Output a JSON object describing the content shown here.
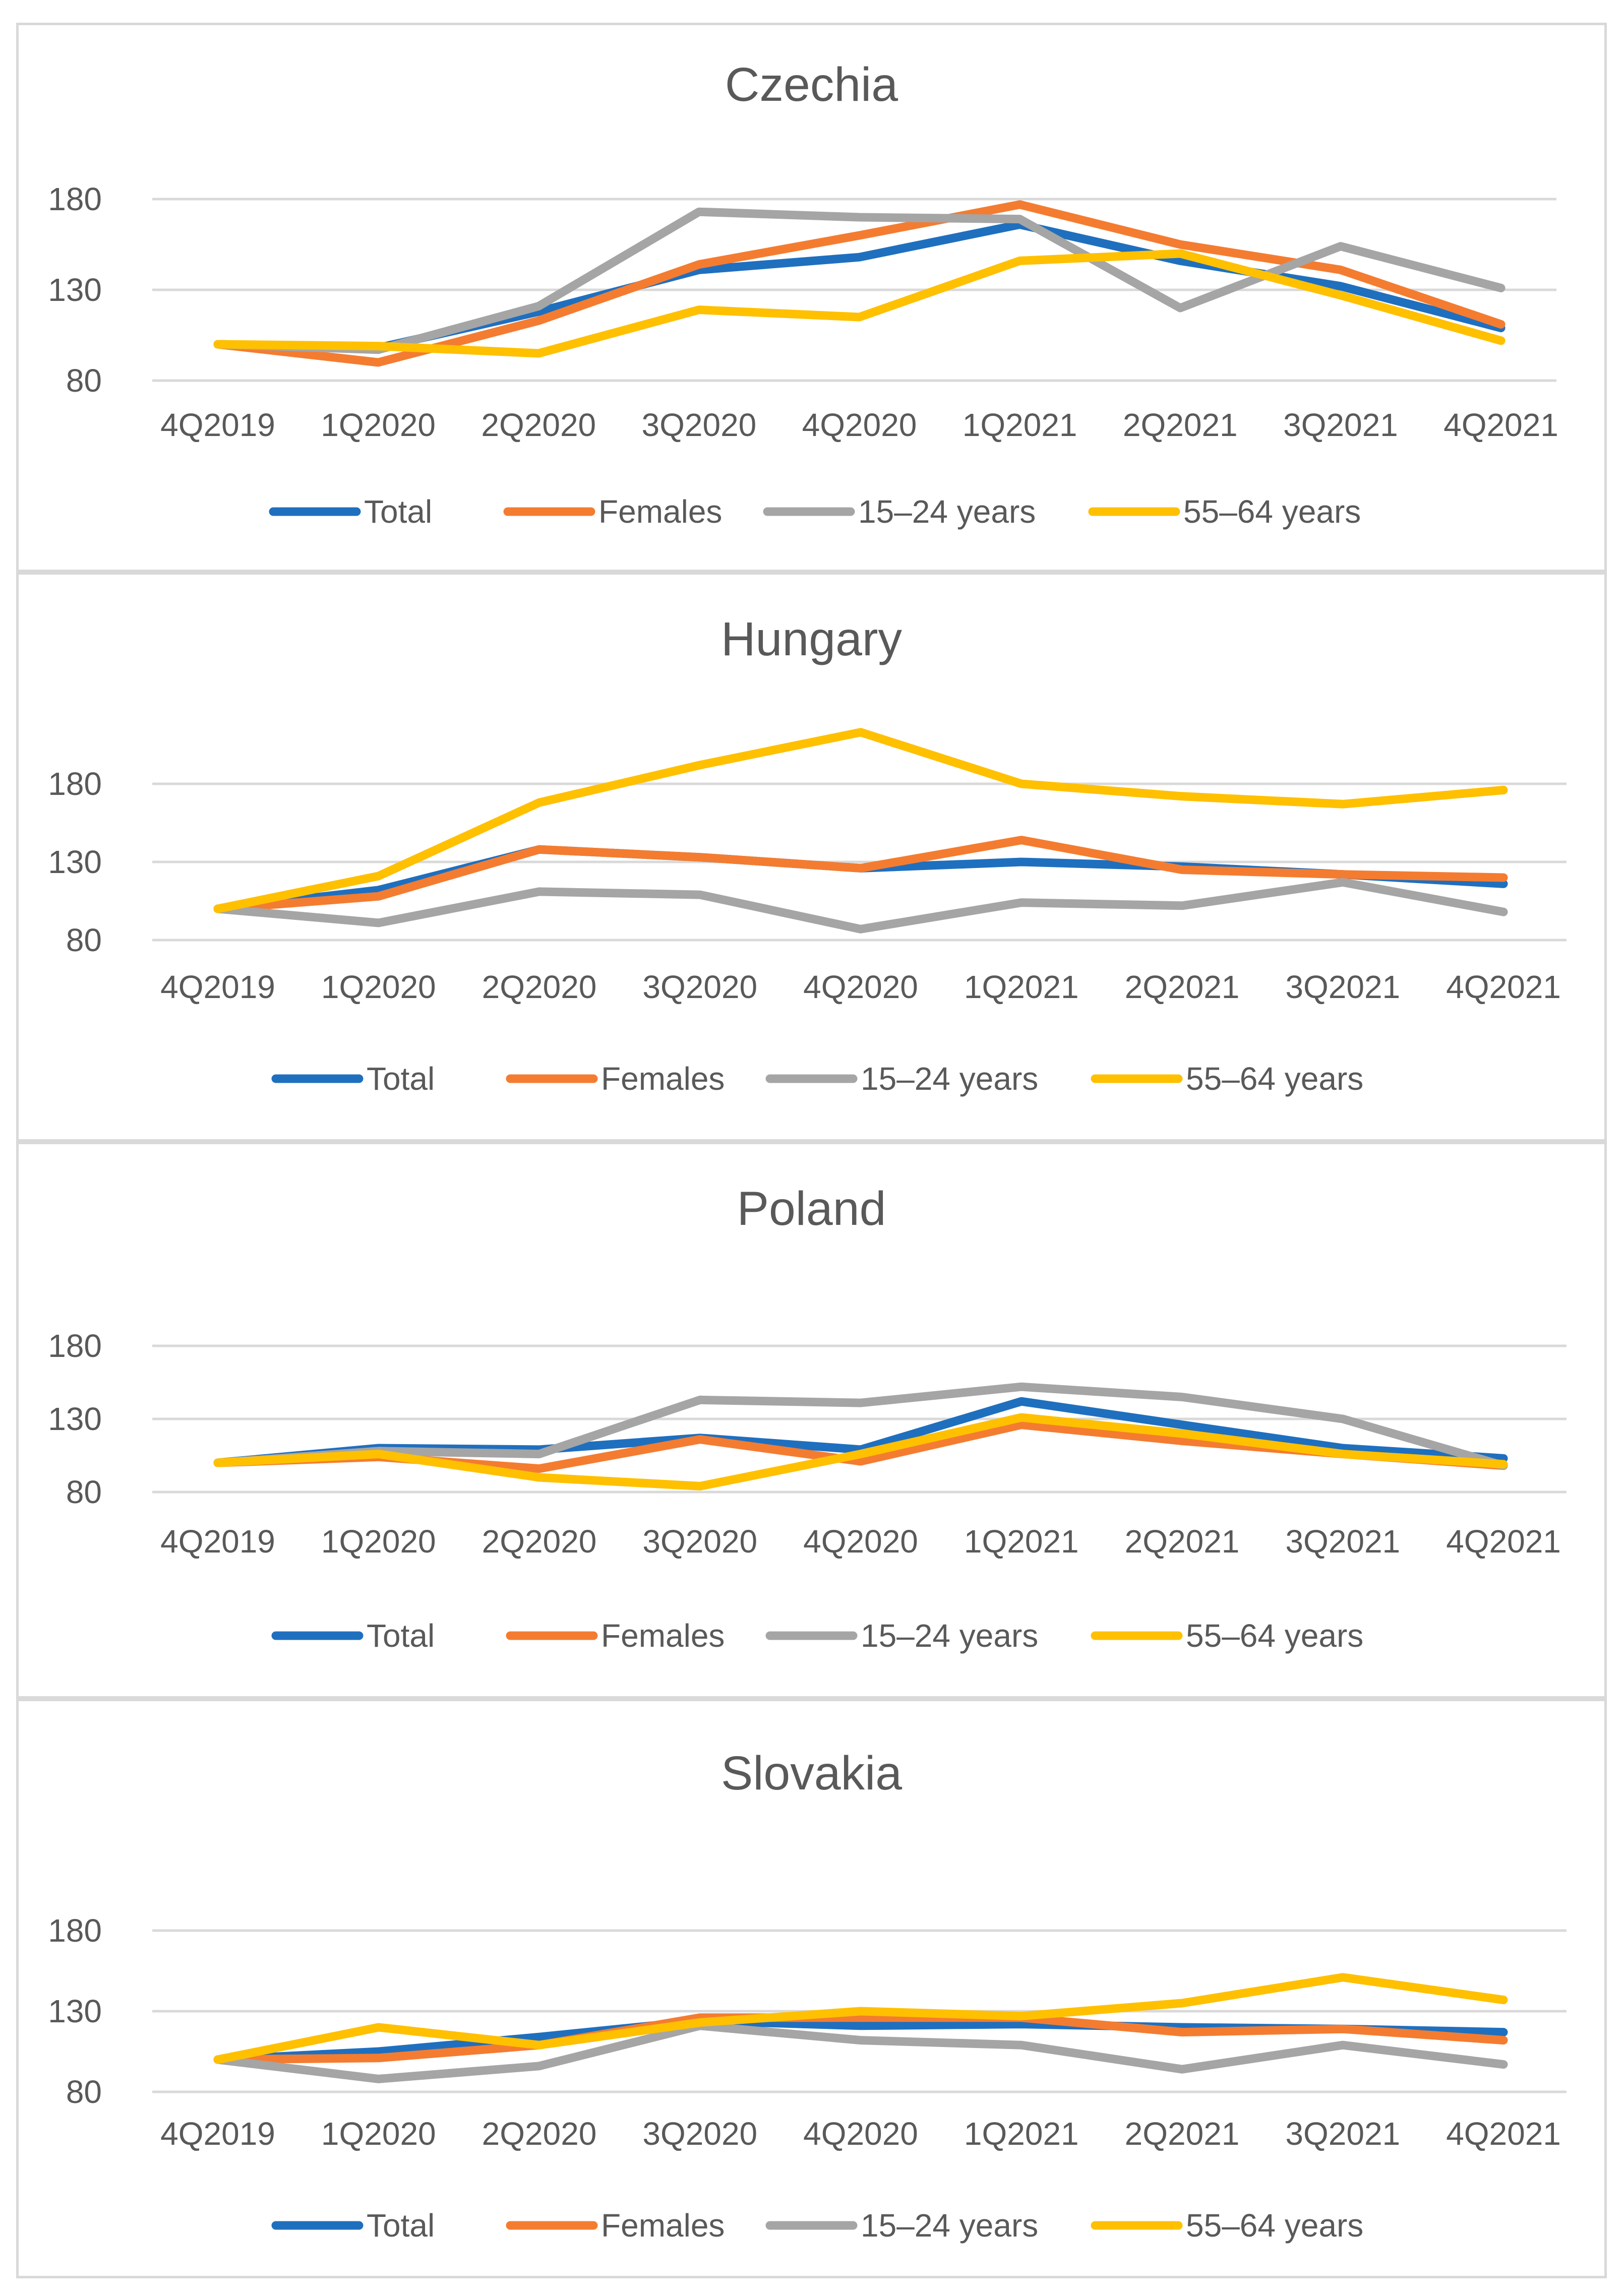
{
  "chart_data": [
    {
      "type": "line",
      "title": "Czechia",
      "categories": [
        "4Q2019",
        "1Q2020",
        "2Q2020",
        "3Q2020",
        "4Q2020",
        "1Q2021",
        "2Q2021",
        "3Q2021",
        "4Q2021"
      ],
      "yticks": [
        "80",
        "130",
        "180"
      ],
      "ylim": [
        80,
        180
      ],
      "series": [
        {
          "name": "Total",
          "color": "#1f6fbf",
          "values": [
            100,
            98,
            118,
            141,
            148,
            166,
            146,
            132,
            109
          ]
        },
        {
          "name": "Females",
          "color": "#f47c30",
          "values": [
            100,
            90,
            113,
            144,
            160,
            177,
            155,
            141,
            111
          ]
        },
        {
          "name": "15–24 years",
          "color": "#a5a5a5",
          "values": [
            100,
            97,
            121,
            173,
            170,
            169,
            120,
            154,
            131
          ]
        },
        {
          "name": "55–64 years",
          "color": "#ffc000",
          "values": [
            100,
            99,
            95,
            119,
            115,
            146,
            150,
            127,
            102
          ]
        }
      ]
    },
    {
      "type": "line",
      "title": "Hungary",
      "categories": [
        "4Q2019",
        "1Q2020",
        "2Q2020",
        "3Q2020",
        "4Q2020",
        "1Q2021",
        "2Q2021",
        "3Q2021",
        "4Q2021"
      ],
      "yticks": [
        "80",
        "130",
        "180"
      ],
      "ylim": [
        80,
        180
      ],
      "series": [
        {
          "name": "Total",
          "color": "#1f6fbf",
          "values": [
            100,
            112,
            138,
            133,
            126,
            130,
            127,
            122,
            116
          ]
        },
        {
          "name": "Females",
          "color": "#f47c30",
          "values": [
            100,
            108,
            138,
            133,
            126,
            144,
            125,
            122,
            120
          ]
        },
        {
          "name": "15–24 years",
          "color": "#a5a5a5",
          "values": [
            100,
            91,
            111,
            109,
            87,
            104,
            102,
            117,
            98
          ]
        },
        {
          "name": "55–64 years",
          "color": "#ffc000",
          "values": [
            100,
            121,
            168,
            192,
            213,
            180,
            172,
            167,
            176
          ]
        }
      ]
    },
    {
      "type": "line",
      "title": "Poland",
      "categories": [
        "4Q2019",
        "1Q2020",
        "2Q2020",
        "3Q2020",
        "4Q2020",
        "1Q2021",
        "2Q2021",
        "3Q2021",
        "4Q2021"
      ],
      "yticks": [
        "80",
        "130",
        "180"
      ],
      "ylim": [
        80,
        180
      ],
      "series": [
        {
          "name": "Total",
          "color": "#1f6fbf",
          "values": [
            100,
            110,
            109,
            117,
            109,
            142,
            126,
            110,
            103
          ]
        },
        {
          "name": "Females",
          "color": "#f47c30",
          "values": [
            100,
            104,
            96,
            116,
            101,
            126,
            115,
            106,
            98
          ]
        },
        {
          "name": "15–24 years",
          "color": "#a5a5a5",
          "values": [
            100,
            108,
            106,
            143,
            141,
            152,
            145,
            130,
            98
          ]
        },
        {
          "name": "55–64 years",
          "color": "#ffc000",
          "values": [
            100,
            106,
            90,
            84,
            106,
            131,
            120,
            106,
            99
          ]
        }
      ]
    },
    {
      "type": "line",
      "title": "Slovakia",
      "categories": [
        "4Q2019",
        "1Q2020",
        "2Q2020",
        "3Q2020",
        "4Q2020",
        "1Q2021",
        "2Q2021",
        "3Q2021",
        "4Q2021"
      ],
      "yticks": [
        "80",
        "130",
        "180"
      ],
      "ylim": [
        80,
        180
      ],
      "series": [
        {
          "name": "Total",
          "color": "#1f6fbf",
          "values": [
            100,
            105,
            114,
            124,
            121,
            122,
            120,
            119,
            117
          ]
        },
        {
          "name": "Females",
          "color": "#f47c30",
          "values": [
            100,
            101,
            109,
            126,
            126,
            126,
            117,
            119,
            112
          ]
        },
        {
          "name": "15–24 years",
          "color": "#a5a5a5",
          "values": [
            100,
            88,
            96,
            121,
            112,
            109,
            94,
            109,
            97
          ]
        },
        {
          "name": "55–64 years",
          "color": "#ffc000",
          "values": [
            100,
            120,
            109,
            123,
            130,
            127,
            135,
            151,
            137
          ]
        }
      ]
    }
  ]
}
